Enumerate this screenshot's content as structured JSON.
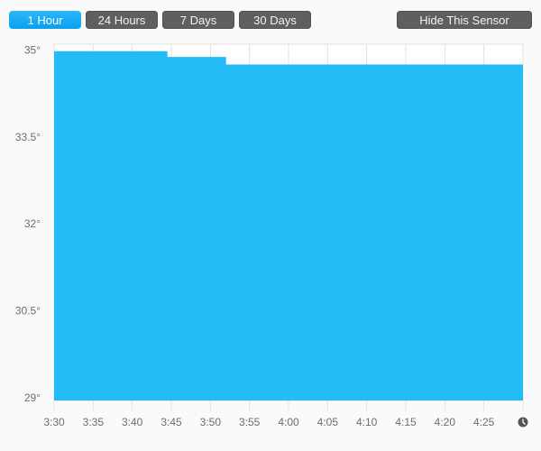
{
  "toolbar": {
    "ranges": [
      "1 Hour",
      "24 Hours",
      "7 Days",
      "30 Days"
    ],
    "active": "1 Hour",
    "hide_label": "Hide This Sensor"
  },
  "colors": {
    "fill": "#24bcf7",
    "grid": "#e2e2e2",
    "active_button": "#14a9f5"
  },
  "chart_data": {
    "type": "area",
    "x_ticks": [
      "3:30",
      "3:35",
      "3:40",
      "3:45",
      "3:50",
      "3:55",
      "4:00",
      "4:05",
      "4:10",
      "4:15",
      "4:20",
      "4:25"
    ],
    "x_end_icon": "clock-icon",
    "y_ticks": [
      {
        "v": 35,
        "label": "35°"
      },
      {
        "v": 33.5,
        "label": "33.5°"
      },
      {
        "v": 32,
        "label": "32°"
      },
      {
        "v": 30.5,
        "label": "30.5°"
      },
      {
        "v": 29,
        "label": "29°"
      }
    ],
    "ylim": [
      28.95,
      35.1
    ],
    "xlim_minutes": [
      0,
      60
    ],
    "grid": true,
    "steps": [
      {
        "from": "3:30",
        "to": "3:44.5",
        "value": 34.98
      },
      {
        "from": "3:44.5",
        "to": "3:52",
        "value": 34.88
      },
      {
        "from": "3:52",
        "to": "4:30",
        "value": 34.75
      }
    ]
  }
}
